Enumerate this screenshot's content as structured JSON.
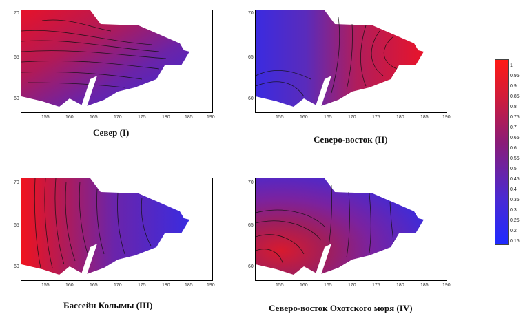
{
  "maps": [
    {
      "id": "north",
      "caption": "Север (I)",
      "ylabels": [
        "70",
        "65",
        "60"
      ],
      "xlabels": [
        "155",
        "160",
        "165",
        "170",
        "175",
        "180",
        "185",
        "190"
      ],
      "colors": [
        "#e0142e",
        "#b01a58",
        "#6a23a8",
        "#3d2bd8"
      ]
    },
    {
      "id": "northeast",
      "caption": "Северо-восток (II)",
      "ylabels": [
        "70",
        "65",
        "60"
      ],
      "xlabels": [
        "155",
        "160",
        "165",
        "170",
        "175",
        "180",
        "185",
        "190"
      ],
      "colors": [
        "#3b2be0",
        "#5a2bbb",
        "#b01d5c",
        "#e8142a"
      ]
    },
    {
      "id": "kolyma",
      "caption": "Бассейн Колымы (III)",
      "ylabels": [
        "70",
        "65",
        "60"
      ],
      "xlabels": [
        "155",
        "160",
        "165",
        "170",
        "175",
        "180",
        "185",
        "190"
      ],
      "colors": [
        "#f0131e",
        "#b11b57",
        "#6b24aa",
        "#3a2ce0"
      ]
    },
    {
      "id": "okhotsk",
      "caption": "Северо-восток Охотского моря (IV)",
      "ylabels": [
        "70",
        "65",
        "60"
      ],
      "xlabels": [
        "155",
        "160",
        "165",
        "170",
        "175",
        "180",
        "185",
        "190"
      ],
      "colors": [
        "#8a1f7d",
        "#cc1b3d",
        "#7a22a0",
        "#3f2bd8"
      ]
    }
  ],
  "legend": {
    "labels": [
      "1",
      "0.95",
      "0.9",
      "0.85",
      "0.8",
      "0.75",
      "0.7",
      "0.65",
      "0.6",
      "0.55",
      "0.5",
      "0.45",
      "0.4",
      "0.35",
      "0.3",
      "0.25",
      "0.2",
      "0.15"
    ]
  }
}
